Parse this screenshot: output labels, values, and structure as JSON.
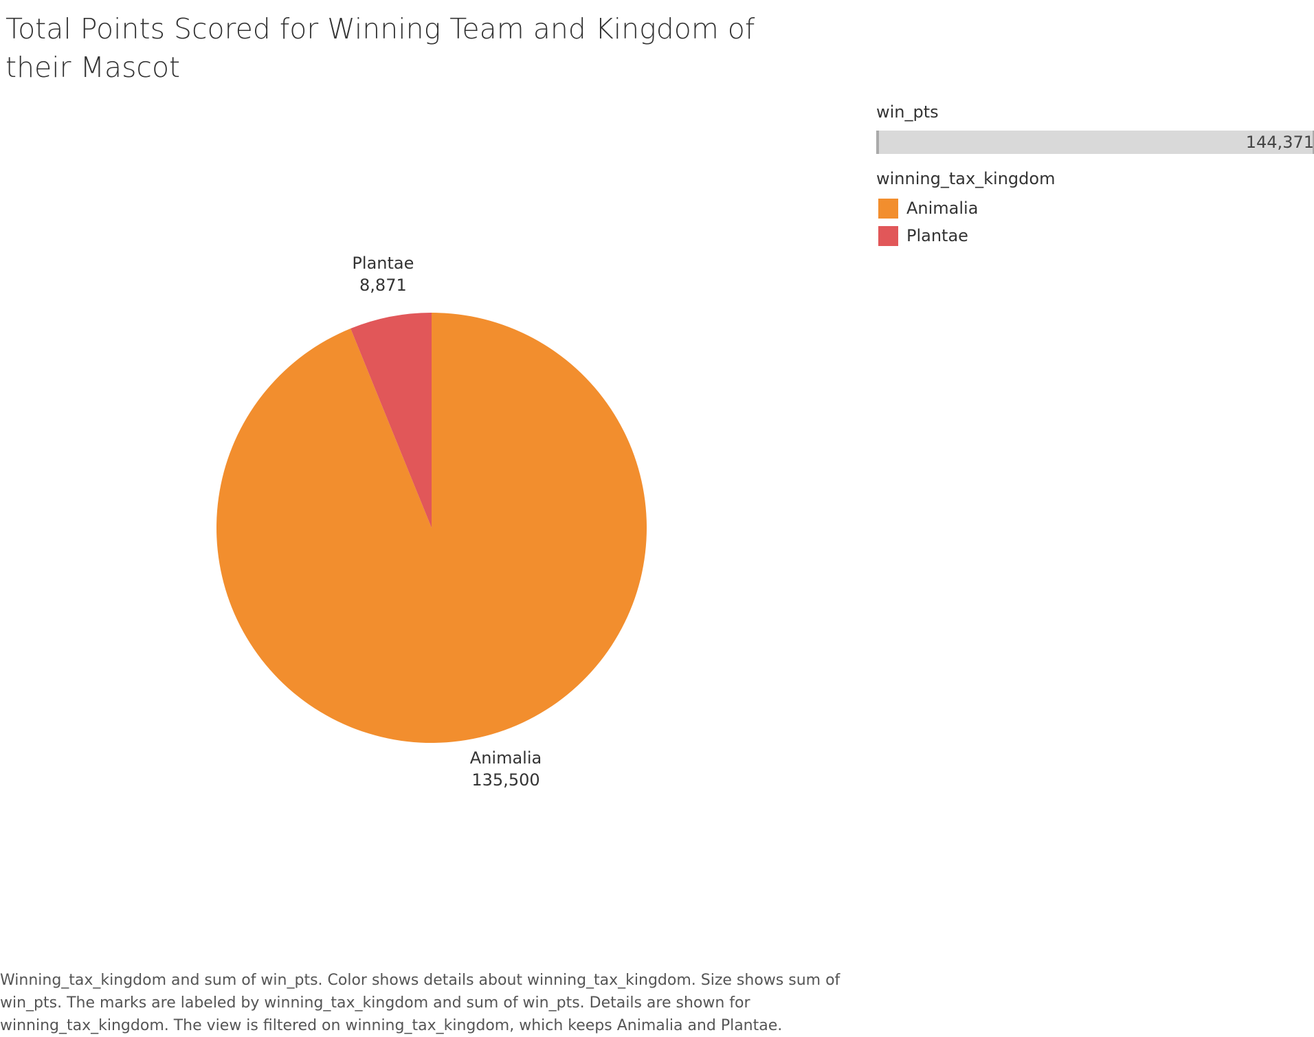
{
  "chart_data": {
    "type": "pie",
    "title": "Total Points Scored for Winning Team and Kingdom of their Mascot",
    "categories": [
      "Animalia",
      "Plantae"
    ],
    "values": [
      135500,
      8871
    ],
    "value_labels": [
      "135,500",
      "8,871"
    ],
    "colors": [
      "#f28e2e",
      "#e15759"
    ],
    "size_legend": {
      "title": "win_pts",
      "max_label": "144,371"
    },
    "color_legend": {
      "title": "winning_tax_kingdom",
      "placement": "right",
      "items": [
        {
          "label": "Animalia",
          "color": "#f28e2e"
        },
        {
          "label": "Plantae",
          "color": "#e15759"
        }
      ]
    },
    "caption": "Winning_tax_kingdom and sum of win_pts.  Color shows details about winning_tax_kingdom.  Size shows sum of win_pts.  The marks are labeled by winning_tax_kingdom and sum of win_pts.  Details are shown for winning_tax_kingdom. The view is filtered on winning_tax_kingdom, which keeps Animalia and Plantae."
  }
}
